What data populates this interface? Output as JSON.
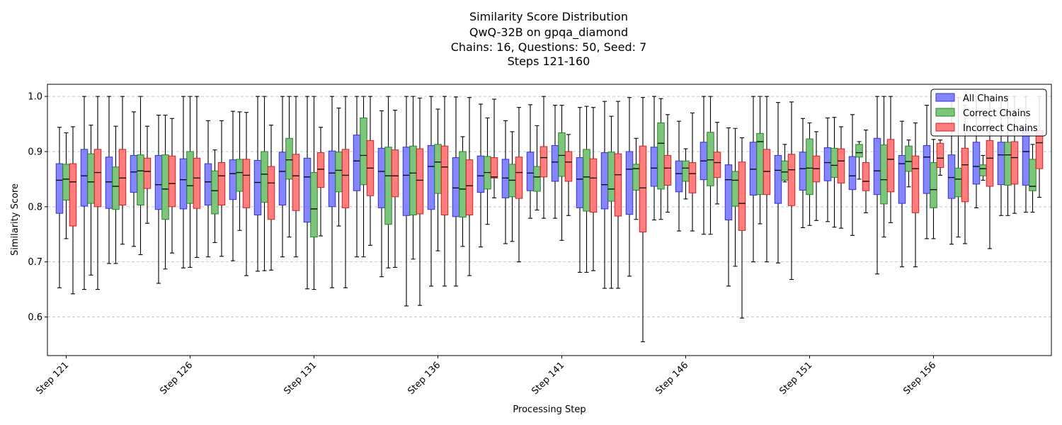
{
  "chart_data": {
    "type": "box",
    "title_lines": [
      "Similarity Score Distribution",
      "QwQ-32B on gpqa_diamond",
      "Chains: 16, Questions: 50, Seed: 7",
      "Steps 121-160"
    ],
    "xlabel": "Processing Step",
    "ylabel": "Similarity Score",
    "ylim": [
      0.53,
      1.022
    ],
    "yticks": [
      0.6,
      0.7,
      0.8,
      0.9,
      1.0
    ],
    "ytick_labels": [
      "0.6",
      "0.7",
      "0.8",
      "0.9",
      "1.0"
    ],
    "xtick_steps": [
      121,
      126,
      131,
      136,
      141,
      146,
      151,
      156
    ],
    "xtick_labels": [
      "Step 121",
      "Step 126",
      "Step 131",
      "Step 136",
      "Step 141",
      "Step 146",
      "Step 151",
      "Step 156"
    ],
    "grid": "horizontal-dashed",
    "legend_position": "top-right",
    "steps": [
      121,
      122,
      123,
      124,
      125,
      126,
      127,
      128,
      129,
      130,
      131,
      132,
      133,
      134,
      135,
      136,
      137,
      138,
      139,
      140,
      141,
      142,
      143,
      144,
      145,
      146,
      147,
      148,
      149,
      150,
      151,
      152,
      153,
      154,
      155,
      156,
      157,
      158,
      159,
      160
    ],
    "series": [
      {
        "name": "All Chains",
        "color": "#7070ff",
        "edge": "#3333cc",
        "stats": [
          [
            0.653,
            0.788,
            0.848,
            0.878,
            0.944
          ],
          [
            0.65,
            0.801,
            0.856,
            0.904,
            1.0
          ],
          [
            0.697,
            0.797,
            0.845,
            0.89,
            1.0
          ],
          [
            0.728,
            0.826,
            0.863,
            0.893,
            0.972
          ],
          [
            0.661,
            0.795,
            0.84,
            0.893,
            0.966
          ],
          [
            0.689,
            0.796,
            0.849,
            0.887,
            1.0
          ],
          [
            0.709,
            0.803,
            0.845,
            0.878,
            0.956
          ],
          [
            0.702,
            0.813,
            0.86,
            0.885,
            0.973
          ],
          [
            0.683,
            0.785,
            0.844,
            0.884,
            1.0
          ],
          [
            0.709,
            0.803,
            0.864,
            0.899,
            1.0
          ],
          [
            0.651,
            0.772,
            0.854,
            0.888,
            1.0
          ],
          [
            0.653,
            0.8,
            0.861,
            0.901,
            1.0
          ],
          [
            0.709,
            0.829,
            0.883,
            0.93,
            1.0
          ],
          [
            0.673,
            0.798,
            0.864,
            0.906,
            0.974
          ],
          [
            0.62,
            0.784,
            0.857,
            0.908,
            1.0
          ],
          [
            0.656,
            0.795,
            0.873,
            0.911,
            1.0
          ],
          [
            0.656,
            0.782,
            0.834,
            0.889,
            0.999
          ],
          [
            0.727,
            0.826,
            0.856,
            0.892,
            0.986
          ],
          [
            0.733,
            0.816,
            0.852,
            0.886,
            0.956
          ],
          [
            0.779,
            0.829,
            0.861,
            0.899,
            0.985
          ],
          [
            0.779,
            0.846,
            0.881,
            0.911,
            0.984
          ],
          [
            0.681,
            0.798,
            0.85,
            0.889,
            0.98
          ],
          [
            0.652,
            0.796,
            0.84,
            0.898,
            0.991
          ],
          [
            0.674,
            0.786,
            0.868,
            0.9,
            0.998
          ],
          [
            0.776,
            0.837,
            0.87,
            0.908,
            1.0
          ],
          [
            0.756,
            0.827,
            0.86,
            0.883,
            0.955
          ],
          [
            0.75,
            0.849,
            0.883,
            0.917,
            1.0
          ],
          [
            0.656,
            0.776,
            0.849,
            0.876,
            0.943
          ],
          [
            0.7,
            0.821,
            0.868,
            0.917,
            1.0
          ],
          [
            0.698,
            0.806,
            0.866,
            0.893,
            0.989
          ],
          [
            0.762,
            0.83,
            0.869,
            0.899,
            0.96
          ],
          [
            0.773,
            0.847,
            0.88,
            0.907,
            0.961
          ],
          [
            0.748,
            0.831,
            0.856,
            0.891,
            0.967
          ],
          [
            0.678,
            0.822,
            0.865,
            0.924,
            1.0
          ],
          [
            0.691,
            0.806,
            0.878,
            0.893,
            0.955
          ],
          [
            0.742,
            0.824,
            0.89,
            0.911,
            0.984
          ],
          [
            0.732,
            0.815,
            0.853,
            0.894,
            1.0
          ],
          [
            0.798,
            0.841,
            0.873,
            0.917,
            1.0
          ],
          [
            0.784,
            0.84,
            0.894,
            0.917,
            1.0
          ],
          [
            0.79,
            0.839,
            0.9,
            0.94,
            1.0
          ]
        ]
      },
      {
        "name": "Correct Chains",
        "color": "#66bb66",
        "edge": "#228822",
        "stats": [
          [
            0.742,
            0.812,
            0.85,
            0.877,
            0.934
          ],
          [
            0.676,
            0.806,
            0.845,
            0.896,
            0.948
          ],
          [
            0.697,
            0.795,
            0.837,
            0.872,
            0.946
          ],
          [
            0.713,
            0.803,
            0.865,
            0.894,
            1.0
          ],
          [
            0.687,
            0.777,
            0.832,
            0.894,
            0.966
          ],
          [
            0.69,
            0.806,
            0.838,
            0.9,
            1.0
          ],
          [
            0.735,
            0.787,
            0.829,
            0.865,
            0.903
          ],
          [
            0.757,
            0.828,
            0.862,
            0.886,
            0.972
          ],
          [
            0.684,
            0.808,
            0.859,
            0.9,
            1.0
          ],
          [
            0.745,
            0.85,
            0.885,
            0.924,
            1.0
          ],
          [
            0.65,
            0.745,
            0.796,
            0.862,
            1.0
          ],
          [
            0.765,
            0.827,
            0.866,
            0.899,
            0.979
          ],
          [
            0.709,
            0.84,
            0.893,
            0.961,
            1.0
          ],
          [
            0.689,
            0.768,
            0.856,
            0.908,
            1.0
          ],
          [
            0.705,
            0.785,
            0.861,
            0.91,
            1.0
          ],
          [
            0.72,
            0.824,
            0.881,
            0.913,
            0.977
          ],
          [
            0.728,
            0.781,
            0.832,
            0.9,
            0.927
          ],
          [
            0.768,
            0.832,
            0.862,
            0.891,
            0.961
          ],
          [
            0.737,
            0.818,
            0.848,
            0.877,
            0.936
          ],
          [
            0.794,
            0.828,
            0.854,
            0.873,
            0.947
          ],
          [
            0.739,
            0.855,
            0.893,
            0.934,
            0.984
          ],
          [
            0.681,
            0.792,
            0.854,
            0.904,
            0.982
          ],
          [
            0.652,
            0.81,
            0.832,
            0.899,
            0.964
          ],
          [
            0.777,
            0.83,
            0.869,
            0.877,
            0.924
          ],
          [
            0.777,
            0.832,
            0.915,
            0.952,
            0.996
          ],
          [
            0.814,
            0.846,
            0.87,
            0.883,
            0.905
          ],
          [
            0.75,
            0.838,
            0.885,
            0.935,
            1.0
          ],
          [
            0.692,
            0.801,
            0.848,
            0.864,
            0.942
          ],
          [
            0.769,
            0.822,
            0.918,
            0.933,
            1.0
          ],
          [
            0.845,
            0.848,
            0.863,
            0.883,
            0.913
          ],
          [
            0.766,
            0.822,
            0.87,
            0.923,
            0.952
          ],
          [
            0.763,
            0.853,
            0.875,
            0.906,
            0.962
          ],
          [
            0.85,
            0.89,
            0.898,
            0.913,
            0.918
          ],
          [
            0.745,
            0.805,
            0.849,
            0.912,
            1.0
          ],
          [
            0.836,
            0.864,
            0.882,
            0.91,
            0.921
          ],
          [
            0.742,
            0.798,
            0.831,
            0.88,
            0.922
          ],
          [
            0.745,
            0.818,
            0.85,
            0.87,
            0.998
          ],
          [
            0.848,
            0.856,
            0.869,
            0.876,
            0.893
          ],
          [
            0.784,
            0.839,
            0.894,
            0.917,
            1.0
          ],
          [
            0.79,
            0.829,
            0.837,
            0.886,
            0.913
          ]
        ]
      },
      {
        "name": "Incorrect Chains",
        "color": "#ff6666",
        "edge": "#cc2222",
        "stats": [
          [
            0.642,
            0.765,
            0.845,
            0.878,
            0.945
          ],
          [
            0.65,
            0.8,
            0.862,
            0.904,
            1.0
          ],
          [
            0.732,
            0.803,
            0.852,
            0.904,
            1.0
          ],
          [
            0.77,
            0.833,
            0.864,
            0.888,
            0.946
          ],
          [
            0.716,
            0.8,
            0.842,
            0.892,
            0.96
          ],
          [
            0.708,
            0.797,
            0.852,
            0.888,
            1.0
          ],
          [
            0.71,
            0.803,
            0.856,
            0.88,
            0.956
          ],
          [
            0.675,
            0.798,
            0.857,
            0.886,
            0.971
          ],
          [
            0.685,
            0.777,
            0.843,
            0.873,
            0.948
          ],
          [
            0.709,
            0.793,
            0.856,
            0.895,
            1.0
          ],
          [
            0.747,
            0.835,
            0.868,
            0.898,
            0.944
          ],
          [
            0.653,
            0.798,
            0.857,
            0.904,
            1.0
          ],
          [
            0.73,
            0.82,
            0.87,
            0.92,
            1.0
          ],
          [
            0.69,
            0.818,
            0.856,
            0.903,
            0.975
          ],
          [
            0.621,
            0.787,
            0.848,
            0.905,
            0.997
          ],
          [
            0.656,
            0.785,
            0.872,
            0.91,
            1.0
          ],
          [
            0.675,
            0.785,
            0.838,
            0.885,
            0.998
          ],
          [
            0.816,
            0.852,
            0.854,
            0.889,
            0.995
          ],
          [
            0.7,
            0.815,
            0.862,
            0.89,
            0.98
          ],
          [
            0.779,
            0.854,
            0.889,
            0.909,
            1.0
          ],
          [
            0.784,
            0.846,
            0.881,
            0.9,
            0.931
          ],
          [
            0.684,
            0.79,
            0.852,
            0.887,
            0.98
          ],
          [
            0.652,
            0.783,
            0.858,
            0.896,
            0.991
          ],
          [
            0.555,
            0.754,
            0.834,
            0.91,
            0.998
          ],
          [
            0.79,
            0.839,
            0.87,
            0.893,
            0.967
          ],
          [
            0.756,
            0.825,
            0.86,
            0.88,
            0.97
          ],
          [
            0.805,
            0.853,
            0.88,
            0.899,
            0.953
          ],
          [
            0.598,
            0.757,
            0.806,
            0.881,
            0.925
          ],
          [
            0.7,
            0.822,
            0.864,
            0.904,
            1.0
          ],
          [
            0.668,
            0.802,
            0.867,
            0.895,
            0.99
          ],
          [
            0.775,
            0.845,
            0.869,
            0.892,
            0.936
          ],
          [
            0.761,
            0.843,
            0.883,
            0.905,
            0.945
          ],
          [
            0.789,
            0.829,
            0.846,
            0.88,
            0.939
          ],
          [
            0.771,
            0.827,
            0.886,
            0.922,
            1.0
          ],
          [
            0.691,
            0.789,
            0.869,
            0.892,
            0.952
          ],
          [
            0.857,
            0.871,
            0.888,
            0.915,
            0.921
          ],
          [
            0.733,
            0.809,
            0.876,
            0.906,
            0.984
          ],
          [
            0.724,
            0.837,
            0.888,
            0.92,
            1.0
          ],
          [
            0.788,
            0.841,
            0.889,
            0.918,
            1.0
          ],
          [
            0.817,
            0.869,
            0.916,
            0.938,
            1.0
          ]
        ]
      }
    ]
  }
}
